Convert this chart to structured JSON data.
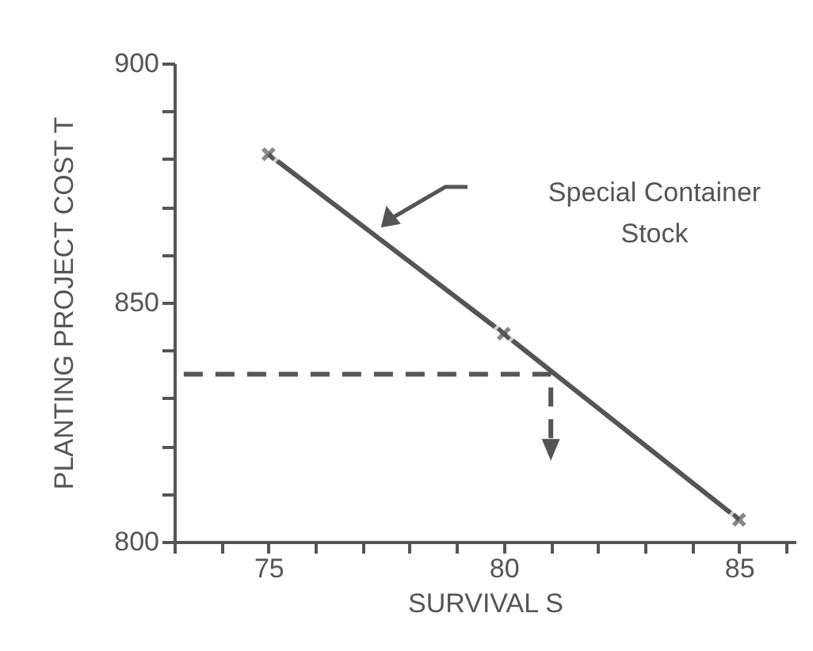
{
  "chart_data": {
    "type": "line",
    "xlabel": "SURVIVAL S",
    "ylabel": "PLANTING PROJECT COST T",
    "xlim": [
      73,
      86.2
    ],
    "ylim": [
      800,
      900
    ],
    "xticks": [
      {
        "value": 73,
        "label": null
      },
      {
        "value": 74,
        "label": null
      },
      75,
      {
        "value": 76,
        "label": null
      },
      {
        "value": 77,
        "label": null
      },
      {
        "value": 78,
        "label": null
      },
      {
        "value": 79,
        "label": null
      },
      80,
      {
        "value": 81,
        "label": null
      },
      {
        "value": 82,
        "label": null
      },
      {
        "value": 83,
        "label": null
      },
      {
        "value": 84,
        "label": null
      },
      85,
      {
        "value": 86,
        "label": null
      }
    ],
    "yticks": [
      800,
      {
        "value": 810,
        "label": null
      },
      {
        "value": 820,
        "label": null
      },
      {
        "value": 830,
        "label": null
      },
      {
        "value": 840,
        "label": null
      },
      850,
      {
        "value": 860,
        "label": null
      },
      {
        "value": 870,
        "label": null
      },
      {
        "value": 880,
        "label": null
      },
      {
        "value": 890,
        "label": null
      },
      900
    ],
    "series": [
      {
        "color": "#555555",
        "x": [
          75,
          80,
          85
        ],
        "values": [
          881,
          843.5,
          804.6
        ],
        "marker": "cross",
        "line_style": "solid"
      },
      {
        "color": "#555555",
        "x": [
          73.2,
          81,
          81
        ],
        "values": [
          835,
          835,
          820
        ],
        "marker": "none",
        "line_style": "dashed"
      }
    ],
    "annotations": [
      "Special Container Stock"
    ]
  }
}
